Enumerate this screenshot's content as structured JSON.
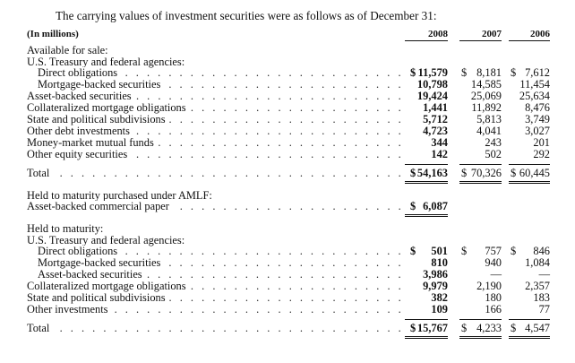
{
  "intro": "The carrying values of investment securities were as follows as of December 31:",
  "header": {
    "label": "(In millions)",
    "years": [
      "2008",
      "2007",
      "2006"
    ]
  },
  "afs": {
    "heading": "Available for sale:",
    "sub": "U.S. Treasury and federal agencies:",
    "rows": [
      {
        "label": "Direct obligations",
        "v": [
          "$11,579",
          "$ 8,181",
          "$ 7,612"
        ],
        "dollar": true
      },
      {
        "label": "Mortgage-backed securities",
        "v": [
          "10,798",
          "14,585",
          "11,454"
        ]
      },
      {
        "label": "Asset-backed securities",
        "v": [
          "19,424",
          "25,069",
          "25,634"
        ]
      },
      {
        "label": "Collateralized mortgage obligations",
        "v": [
          "1,441",
          "11,892",
          "8,476"
        ]
      },
      {
        "label": "State and political subdivisions",
        "v": [
          "5,712",
          "5,813",
          "3,749"
        ]
      },
      {
        "label": "Other debt investments",
        "v": [
          "4,723",
          "4,041",
          "3,027"
        ]
      },
      {
        "label": "Money-market mutual funds",
        "v": [
          "344",
          "243",
          "201"
        ]
      },
      {
        "label": "Other equity securities",
        "v": [
          "142",
          "502",
          "292"
        ]
      }
    ],
    "total": {
      "label": "Total",
      "v": [
        "$54,163",
        "$70,326",
        "$60,445"
      ]
    }
  },
  "amlf": {
    "heading": "Held to maturity purchased under AMLF:",
    "row": {
      "label": "Asset-backed commercial paper",
      "v": "$ 6,087"
    }
  },
  "htm": {
    "heading": "Held to maturity:",
    "sub": "U.S. Treasury and federal agencies:",
    "rows": [
      {
        "label": "Direct obligations",
        "v": [
          "501",
          "757",
          "846"
        ],
        "dollar": true
      },
      {
        "label": "Mortgage-backed securities",
        "v": [
          "810",
          "940",
          "1,084"
        ]
      },
      {
        "label": "Asset-backed securities",
        "v": [
          "3,986",
          "—",
          "—"
        ]
      },
      {
        "label": "Collateralized mortgage obligations",
        "v": [
          "9,979",
          "2,190",
          "2,357"
        ]
      },
      {
        "label": "State and political subdivisions",
        "v": [
          "382",
          "180",
          "183"
        ]
      },
      {
        "label": "Other investments",
        "v": [
          "109",
          "166",
          "77"
        ]
      }
    ],
    "total": {
      "label": "Total",
      "v": [
        "$15,767",
        "4,233",
        "4,547"
      ]
    }
  }
}
